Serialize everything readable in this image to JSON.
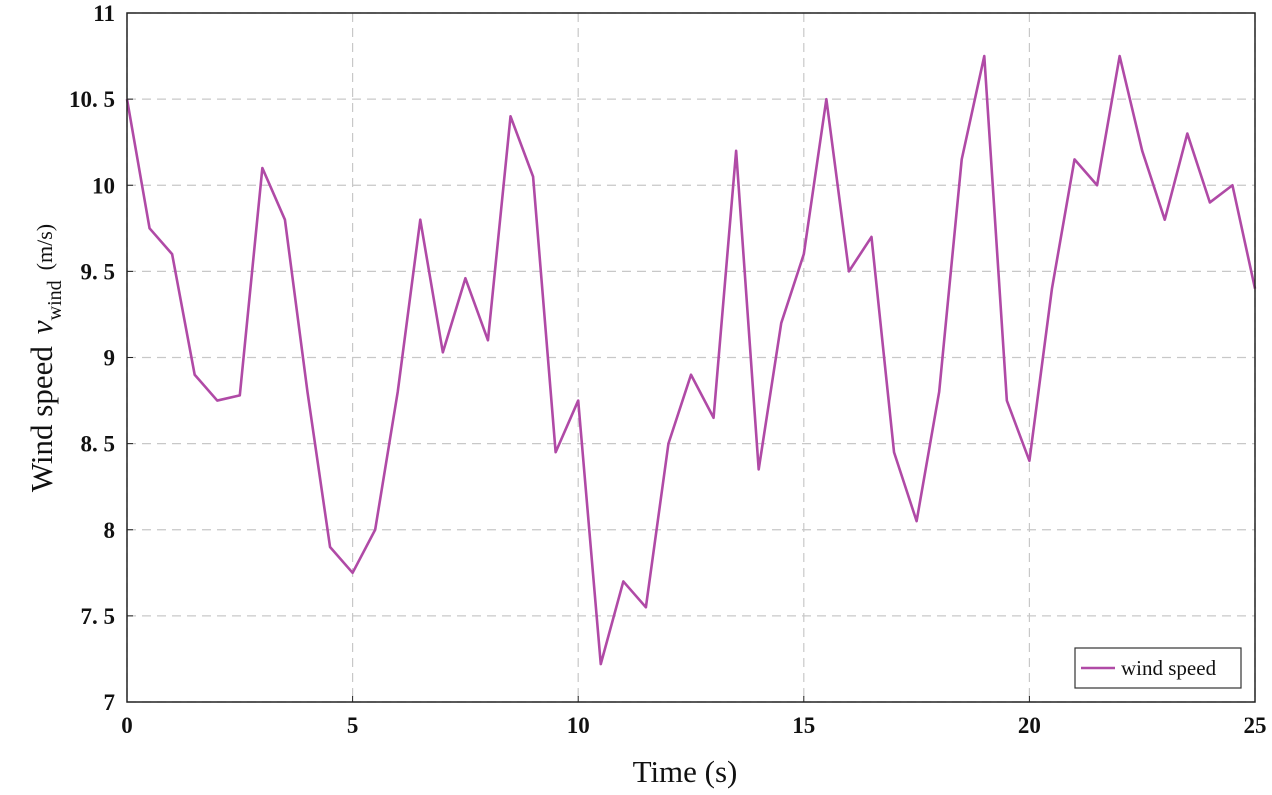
{
  "chart_data": {
    "type": "line",
    "xlabel": "Time (s)",
    "ylabel": "Wind speed",
    "ylabel_symbol": "v",
    "ylabel_subscript": "wind",
    "ylabel_unit": "(m/s)",
    "x": [
      0,
      0.5,
      1,
      1.5,
      2,
      2.5,
      3,
      3.5,
      4,
      4.5,
      5,
      5.5,
      6,
      6.5,
      7,
      7.5,
      8,
      8.5,
      9,
      9.5,
      10,
      10.5,
      11,
      11.5,
      12,
      12.5,
      13,
      13.5,
      14,
      14.5,
      15,
      15.5,
      16,
      16.5,
      17,
      17.5,
      18,
      18.5,
      19,
      19.5,
      20,
      20.5,
      21,
      21.5,
      22,
      22.5,
      23,
      23.5,
      24,
      24.5,
      25
    ],
    "series": [
      {
        "name": "wind speed",
        "color": "#b04aa6",
        "values": [
          10.5,
          9.75,
          9.6,
          8.9,
          8.75,
          8.78,
          10.1,
          9.8,
          8.8,
          7.9,
          7.75,
          8.0,
          8.8,
          9.8,
          9.03,
          9.46,
          9.1,
          10.4,
          10.05,
          8.45,
          8.75,
          7.22,
          7.7,
          7.55,
          8.5,
          8.9,
          8.65,
          10.2,
          8.35,
          9.2,
          9.6,
          10.5,
          9.5,
          9.7,
          8.45,
          8.05,
          8.8,
          10.15,
          10.75,
          8.75,
          8.4,
          9.4,
          10.15,
          10.0,
          10.75,
          10.2,
          9.8,
          10.3,
          9.9,
          10.0,
          9.4
        ]
      }
    ],
    "xlim": [
      0,
      25
    ],
    "ylim": [
      7,
      11
    ],
    "xticks": [
      0,
      5,
      10,
      15,
      20,
      25
    ],
    "yticks": [
      7,
      {
        "value": 7.5,
        "label": "7. 5"
      },
      8,
      {
        "value": 8.5,
        "label": "8. 5"
      },
      9,
      {
        "value": 9.5,
        "label": "9. 5"
      },
      10,
      {
        "value": 10.5,
        "label": "10. 5"
      },
      11
    ],
    "grid": true,
    "legend_position": "lower right"
  }
}
